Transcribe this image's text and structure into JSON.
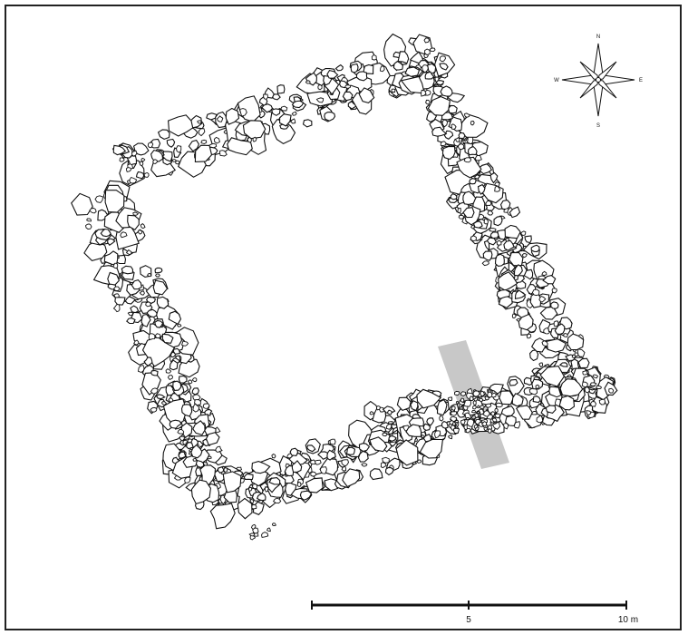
{
  "figure": {
    "frame_color": "#222222",
    "stone_outline_color": "#111111",
    "trench_color": "#c8c8c8"
  },
  "compass": {
    "north": "N",
    "south": "S",
    "east": "E",
    "west": "W"
  },
  "scale_bar": {
    "mid_label": "5",
    "end_label": "10 m"
  }
}
